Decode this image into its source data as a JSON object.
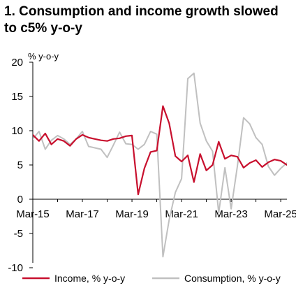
{
  "chart_data": {
    "type": "line",
    "title": "1. Consumption and income growth slowed to c5% y-o-y",
    "ylabel": "% y-o-y",
    "xlabel": "",
    "ylim": [
      -10,
      20
    ],
    "yticks": [
      20,
      15,
      10,
      5,
      0,
      -5,
      -10
    ],
    "x_tick_labels": [
      "Mar-15",
      "Mar-17",
      "Mar-19",
      "Mar-21",
      "Mar-23",
      "Mar-25"
    ],
    "x_start": "Mar-15",
    "x_end": "Jun-25",
    "grid": false,
    "legend_position": "bottom",
    "series": [
      {
        "name": "Income, % y-o-y",
        "color": "#c8102e",
        "x": [
          "Mar-15",
          "Jun-15",
          "Sep-15",
          "Dec-15",
          "Mar-16",
          "Jun-16",
          "Sep-16",
          "Dec-16",
          "Mar-17",
          "Jun-17",
          "Sep-17",
          "Dec-17",
          "Mar-18",
          "Jun-18",
          "Sep-18",
          "Dec-18",
          "Mar-19",
          "Jun-19",
          "Sep-19",
          "Dec-19",
          "Mar-20",
          "Jun-20",
          "Sep-20",
          "Dec-20",
          "Mar-21",
          "Jun-21",
          "Sep-21",
          "Dec-21",
          "Mar-22",
          "Jun-22",
          "Sep-22",
          "Dec-22",
          "Mar-23",
          "Jun-23",
          "Sep-23",
          "Dec-23",
          "Mar-24",
          "Jun-24",
          "Sep-24",
          "Dec-24",
          "Mar-25",
          "Jun-25"
        ],
        "values": [
          9.4,
          8.5,
          9.6,
          8.0,
          8.8,
          8.5,
          7.8,
          8.8,
          9.4,
          9.0,
          8.8,
          8.6,
          8.5,
          8.8,
          8.9,
          9.2,
          9.3,
          0.7,
          4.5,
          6.9,
          7.1,
          13.6,
          11.1,
          6.3,
          5.5,
          6.4,
          2.5,
          6.6,
          4.2,
          5.0,
          8.4,
          5.9,
          6.4,
          6.2,
          4.6,
          5.3,
          5.7,
          4.7,
          5.4,
          5.8,
          5.6,
          5.0
        ]
      },
      {
        "name": "Consumption, % y-o-y",
        "color": "#c0c0c0",
        "x": [
          "Mar-15",
          "Jun-15",
          "Sep-15",
          "Dec-15",
          "Mar-16",
          "Jun-16",
          "Sep-16",
          "Dec-16",
          "Mar-17",
          "Jun-17",
          "Sep-17",
          "Dec-17",
          "Mar-18",
          "Jun-18",
          "Sep-18",
          "Dec-18",
          "Mar-19",
          "Jun-19",
          "Sep-19",
          "Dec-19",
          "Mar-20",
          "Jun-20",
          "Sep-20",
          "Dec-20",
          "Mar-21",
          "Jun-21",
          "Sep-21",
          "Dec-21",
          "Mar-22",
          "Jun-22",
          "Sep-22",
          "Dec-22",
          "Mar-23",
          "Jun-23",
          "Sep-23",
          "Dec-23",
          "Mar-24",
          "Jun-24",
          "Sep-24",
          "Dec-24",
          "Mar-25",
          "Jun-25"
        ],
        "values": [
          8.8,
          9.9,
          7.3,
          8.6,
          9.3,
          8.8,
          8.0,
          8.8,
          9.9,
          7.7,
          7.5,
          7.3,
          6.1,
          7.9,
          9.8,
          8.1,
          8.0,
          7.3,
          8.0,
          9.9,
          9.5,
          -8.4,
          -3.0,
          1.0,
          3.0,
          17.6,
          18.4,
          11.1,
          8.5,
          7.0,
          -2.0,
          4.6,
          -1.4,
          4.8,
          11.9,
          11.0,
          9.0,
          8.0,
          4.8,
          3.5,
          4.5,
          5.3
        ]
      }
    ]
  }
}
